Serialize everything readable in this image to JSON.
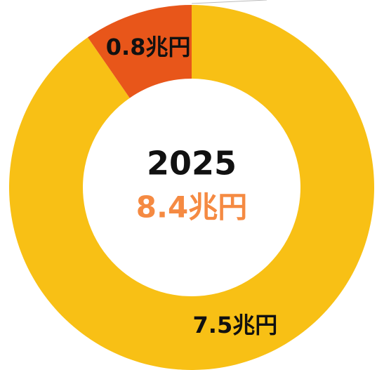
{
  "chart_data": {
    "type": "donut",
    "center_title": "2025",
    "center_label": "8.4兆円",
    "center_label_color": "#f58a42",
    "values": [
      7.5,
      0.8
    ],
    "value_labels": [
      "7.5兆円",
      "0.8兆円"
    ],
    "colors": [
      "#f8c015",
      "#e8561a"
    ]
  }
}
